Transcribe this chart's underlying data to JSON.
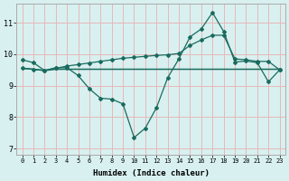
{
  "line1_x": [
    0,
    1,
    2,
    3,
    4,
    5,
    6,
    7,
    8,
    9,
    10,
    11,
    12,
    13,
    14,
    15,
    16,
    17,
    18,
    19,
    20,
    21,
    22,
    23
  ],
  "line1_y": [
    9.82,
    9.73,
    9.48,
    9.57,
    9.57,
    9.32,
    8.9,
    8.6,
    8.57,
    8.42,
    7.35,
    7.65,
    8.3,
    9.25,
    9.85,
    10.55,
    10.8,
    11.32,
    10.72,
    9.75,
    9.78,
    9.73,
    9.12,
    9.5
  ],
  "line2_x": [
    0,
    1,
    2,
    3,
    4,
    5,
    6,
    7,
    8,
    9,
    10,
    11,
    12,
    13,
    14,
    15,
    16,
    17,
    18,
    19,
    20,
    21,
    22,
    23
  ],
  "line2_y": [
    9.55,
    9.52,
    9.48,
    9.52,
    9.52,
    9.52,
    9.52,
    9.52,
    9.52,
    9.52,
    9.52,
    9.52,
    9.52,
    9.52,
    9.52,
    9.52,
    9.52,
    9.52,
    9.52,
    9.52,
    9.52,
    9.52,
    9.52,
    9.52
  ],
  "line3_x": [
    0,
    1,
    2,
    3,
    4,
    5,
    6,
    7,
    8,
    9,
    10,
    11,
    12,
    13,
    14,
    15,
    16,
    17,
    18,
    19,
    20,
    21,
    22,
    23
  ],
  "line3_y": [
    9.55,
    9.52,
    9.48,
    9.55,
    9.62,
    9.67,
    9.72,
    9.77,
    9.82,
    9.87,
    9.9,
    9.93,
    9.96,
    9.98,
    10.02,
    10.28,
    10.45,
    10.6,
    10.6,
    9.85,
    9.82,
    9.77,
    9.77,
    9.5
  ],
  "line_color": "#1a6b5e",
  "bg_color": "#d8f0f0",
  "grid_color": "#e8b8b8",
  "xlabel": "Humidex (Indice chaleur)",
  "ylim": [
    6.8,
    11.6
  ],
  "xlim": [
    -0.5,
    23.5
  ],
  "yticks": [
    7,
    8,
    9,
    10,
    11
  ],
  "xticks": [
    0,
    1,
    2,
    3,
    4,
    5,
    6,
    7,
    8,
    9,
    10,
    11,
    12,
    13,
    14,
    15,
    16,
    17,
    18,
    19,
    20,
    21,
    22,
    23
  ]
}
